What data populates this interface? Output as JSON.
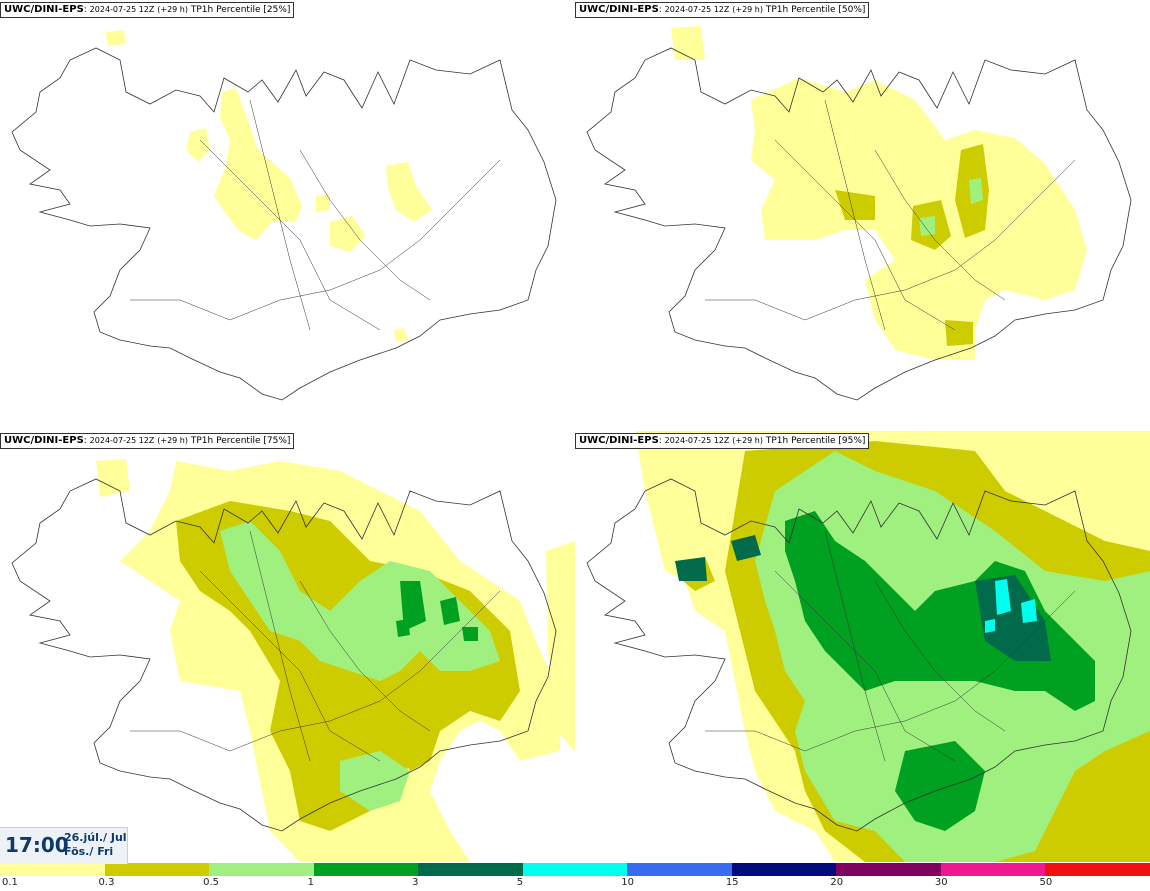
{
  "panels": [
    {
      "model": "UWC/DINI-EPS",
      "run": "2024-07-25 12Z",
      "lead": "(+29 h)",
      "field": "TP1h Percentile",
      "percentile": "[25%]"
    },
    {
      "model": "UWC/DINI-EPS",
      "run": "2024-07-25 12Z",
      "lead": "(+29 h)",
      "field": "TP1h Percentile",
      "percentile": "[50%]"
    },
    {
      "model": "UWC/DINI-EPS",
      "run": "2024-07-25 12Z",
      "lead": "(+29 h)",
      "field": "TP1h Percentile",
      "percentile": "[75%]"
    },
    {
      "model": "UWC/DINI-EPS",
      "run": "2024-07-25 12Z",
      "lead": "(+29 h)",
      "field": "TP1h Percentile",
      "percentile": "[95%]"
    }
  ],
  "valid_time": {
    "time": "17:00",
    "date_line1": "26.júl./ Jul",
    "date_line2": "Fös./ Fri"
  },
  "legend": {
    "ticks": [
      "0.1",
      "0.3",
      "0.5",
      "1",
      "3",
      "5",
      "10",
      "15",
      "20",
      "30",
      "50"
    ],
    "colors": [
      "#ffff99",
      "#cccc00",
      "#a0f080",
      "#00a020",
      "#006a4a",
      "#00ffee",
      "#3a6cf0",
      "#000a7a",
      "#800060",
      "#f01890",
      "#f01010"
    ]
  },
  "map_colors": {
    "c1": "#ffff99",
    "c2": "#cccc00",
    "c3": "#a0f080",
    "c4": "#00a020",
    "c5": "#006a4a",
    "c6": "#00ffee",
    "coast": "#333333"
  }
}
